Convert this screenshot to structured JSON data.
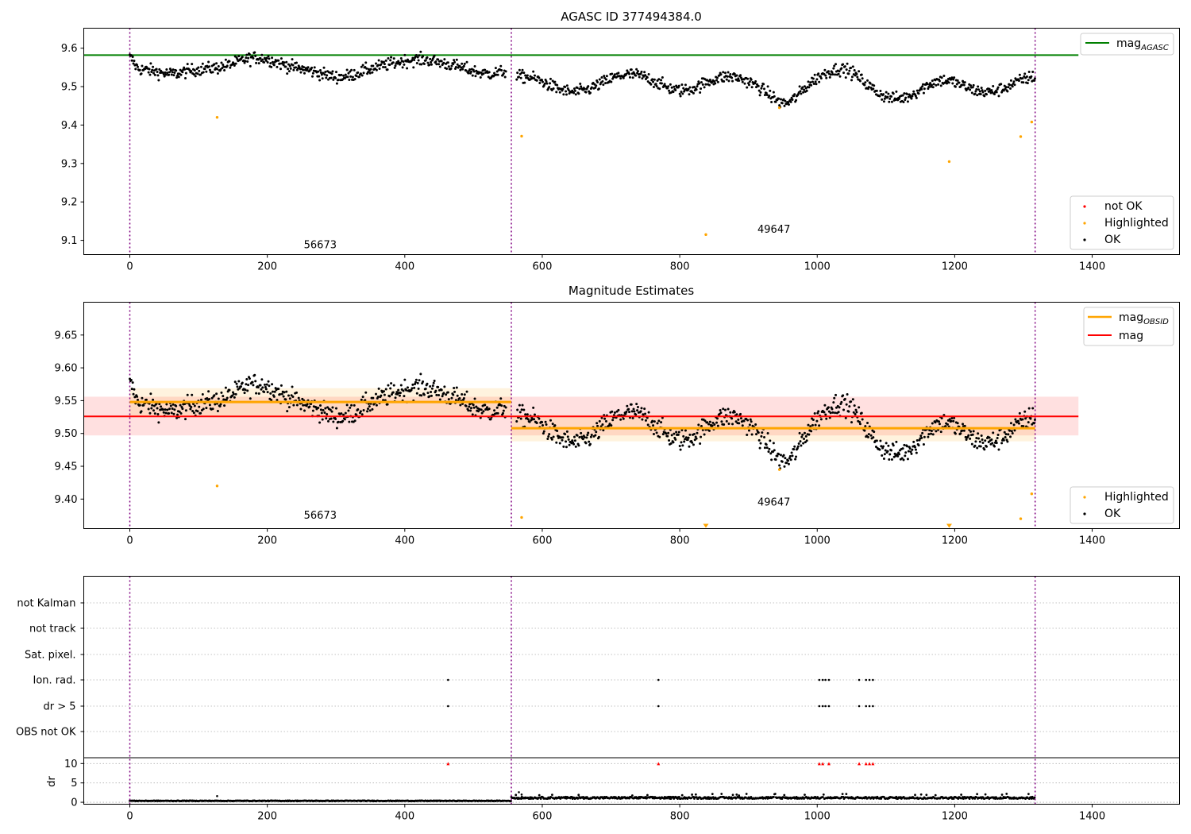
{
  "chart_data": [
    {
      "type": "scatter",
      "title": "AGASC ID 377494384.0",
      "xlim": [
        -67,
        1527
      ],
      "ylim": [
        9.063,
        9.652
      ],
      "xticks": [
        0,
        200,
        400,
        600,
        800,
        1000,
        1200,
        1400
      ],
      "yticks": [
        9.1,
        9.2,
        9.3,
        9.4,
        9.5,
        9.6
      ],
      "grid": false,
      "obsid_boundaries": [
        0,
        555,
        1317
      ],
      "annotations": [
        {
          "text": "56673",
          "x": 277,
          "y": 9.08
        },
        {
          "text": "49647",
          "x": 937,
          "y": 9.12
        }
      ],
      "reference_lines": [
        {
          "label_main": "mag",
          "label_sub": "AGASC",
          "y": 9.582,
          "color": "#008000",
          "x": [
            -67,
            1380
          ]
        }
      ],
      "legend_lines": [
        {
          "main": "mag",
          "sub": "AGASC",
          "color": "#008000"
        }
      ],
      "legend_points": [
        {
          "label": "not OK",
          "color": "#ff0000"
        },
        {
          "label": "Highlighted",
          "color": "#ffa500"
        },
        {
          "label": "OK",
          "color": "#000000"
        }
      ],
      "legend_position": {
        "lines": "upper right",
        "points": "lower right"
      },
      "series": [
        {
          "name": "OK",
          "color": "#000000"
        },
        {
          "name": "Highlighted",
          "color": "#ffa500",
          "points": [
            [
              127,
              9.42
            ],
            [
              570,
              9.371
            ],
            [
              838,
              9.115
            ],
            [
              945,
              9.445
            ],
            [
              1192,
              9.305
            ],
            [
              1296,
              9.37
            ],
            [
              1312,
              9.408
            ]
          ]
        },
        {
          "name": "not OK",
          "color": "#ff0000",
          "points": []
        }
      ]
    },
    {
      "type": "scatter",
      "title": "Magnitude Estimates",
      "xlim": [
        -67,
        1527
      ],
      "ylim": [
        9.355,
        9.7
      ],
      "xticks": [
        0,
        200,
        400,
        600,
        800,
        1000,
        1200,
        1400
      ],
      "yticks": [
        9.4,
        9.45,
        9.5,
        9.55,
        9.6,
        9.65
      ],
      "grid": false,
      "obsid_boundaries": [
        0,
        555,
        1317
      ],
      "annotations": [
        {
          "text": "56673",
          "x": 277,
          "y": 9.37
        },
        {
          "text": "49647",
          "x": 937,
          "y": 9.39
        }
      ],
      "bands": [
        {
          "label": "mag",
          "y": 9.526,
          "ylo": 9.497,
          "yhi": 9.556,
          "x": [
            -67,
            1380
          ],
          "color": "#ff0000"
        },
        {
          "label": "mag_OBSID 56673",
          "y": 9.548,
          "ylo": 9.527,
          "yhi": 9.569,
          "x": [
            0,
            555
          ],
          "color": "#ffa500"
        },
        {
          "label": "mag_OBSID 49647",
          "y": 9.508,
          "ylo": 9.488,
          "yhi": 9.528,
          "x": [
            555,
            1317
          ],
          "color": "#ffa500"
        }
      ],
      "legend_lines": [
        {
          "main": "mag",
          "sub": "OBSID",
          "color": "#ffa500"
        },
        {
          "main": "mag",
          "sub": "",
          "color": "#ff0000"
        }
      ],
      "legend_points": [
        {
          "label": "Highlighted",
          "color": "#ffa500"
        },
        {
          "label": "OK",
          "color": "#000000"
        }
      ],
      "legend_position": {
        "lines": "upper right",
        "points": "lower right"
      },
      "series": [
        {
          "name": "OK",
          "color": "#000000"
        },
        {
          "name": "Highlighted",
          "color": "#ffa500",
          "points": [
            [
              127,
              9.42
            ],
            [
              570,
              9.372
            ],
            [
              945,
              9.445
            ],
            [
              1296,
              9.37
            ],
            [
              1312,
              9.408
            ]
          ]
        },
        {
          "name": "Highlighted (below axis)",
          "color": "#ffa500",
          "points": [
            [
              838,
              9.355
            ],
            [
              1192,
              9.355
            ]
          ]
        }
      ]
    },
    {
      "type": "scatter",
      "title": "",
      "xlim": [
        -67,
        1527
      ],
      "xticks": [
        0,
        200,
        400,
        600,
        800,
        1000,
        1200,
        1400
      ],
      "obsid_boundaries": [
        0,
        555,
        1317
      ],
      "flag_rows": [
        "not Kalman",
        "not track",
        "Sat. pixel.",
        "Ion. rad.",
        "dr > 5",
        "OBS not OK"
      ],
      "flag_points": {
        "Ion. rad.": [
          463,
          769,
          1003,
          1008,
          1012,
          1017,
          1061,
          1071,
          1076,
          1081
        ],
        "dr > 5": [
          463,
          769,
          1003,
          1008,
          1012,
          1017,
          1061,
          1071,
          1076,
          1081
        ]
      },
      "dr": {
        "ylabel": "dr",
        "ylim": [
          -0.5,
          11.5
        ],
        "yticks": [
          0,
          5,
          10
        ],
        "clipped_at_10": [
          463,
          769,
          1003,
          1008,
          1017,
          1061,
          1071,
          1076,
          1081
        ],
        "spikes": [
          [
            127,
            1.6
          ],
          [
            566,
            2.6
          ],
          [
            570,
            2.0
          ]
        ],
        "segments": [
          {
            "x": [
              0,
              555
            ],
            "base": 0.3,
            "amp": 0.15
          },
          {
            "x": [
              555,
              1317
            ],
            "base": 0.9,
            "amp": 0.5
          }
        ]
      }
    }
  ]
}
